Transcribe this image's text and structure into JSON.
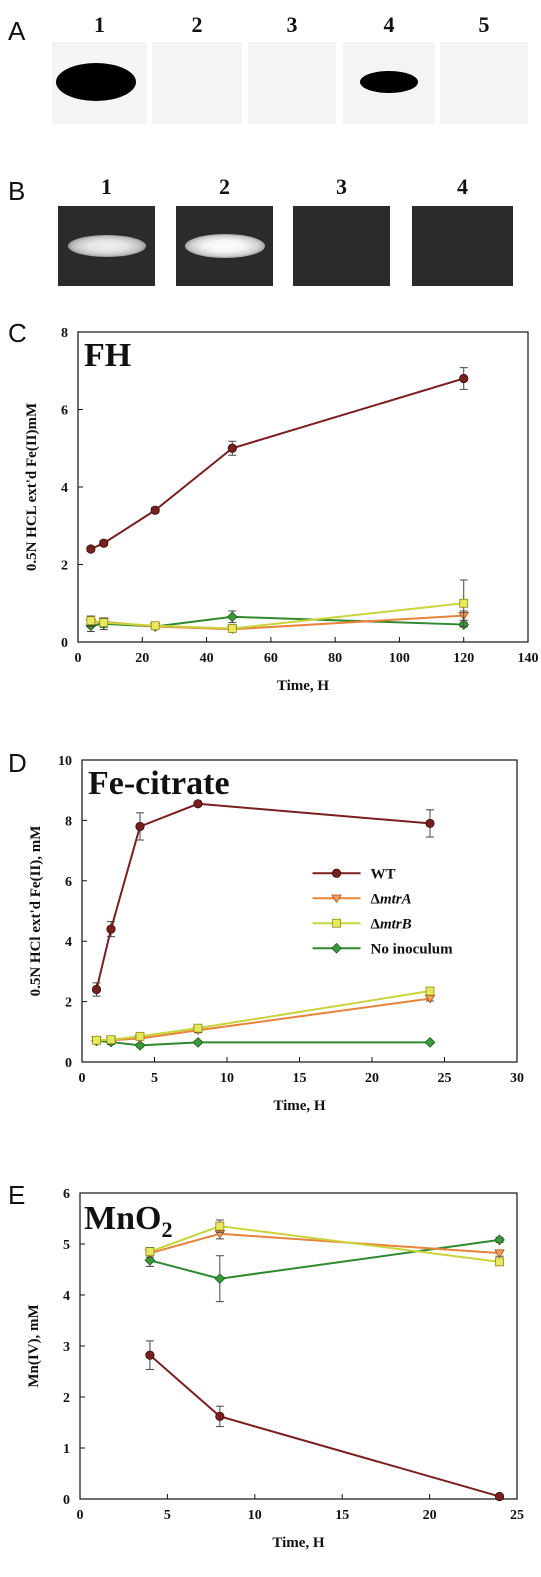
{
  "panels": {
    "a_label": "A",
    "b_label": "B",
    "c_label": "C",
    "d_label": "D",
    "e_label": "E"
  },
  "western_blot": {
    "lanes": [
      "1",
      "2",
      "3",
      "4",
      "5"
    ],
    "band_intensity": [
      1.0,
      0.0,
      0.0,
      0.45,
      0.0
    ]
  },
  "gel": {
    "lanes": [
      "1",
      "2",
      "3",
      "4"
    ],
    "band_intensity": [
      0.8,
      1.0,
      0.0,
      0.0
    ]
  },
  "colors": {
    "WT": "#7a1f1f",
    "mtrA": "#e8833a",
    "mtrB": "#c8d43a",
    "none": "#2f8a2f",
    "markerA": "#f0a060",
    "markerB": "#e8e860",
    "markerNone": "#3a9a3a"
  },
  "chart_data": [
    {
      "type": "line",
      "title": "FH",
      "xlabel": "Time, H",
      "ylabel": "0.5N HCL ext'd Fe(II)mM",
      "xlim": [
        0,
        140
      ],
      "ylim": [
        0,
        8
      ],
      "xticks": [
        "0",
        "20",
        "40",
        "60",
        "80",
        "100",
        "120",
        "140"
      ],
      "yticks": [
        "0",
        "2",
        "4",
        "6",
        "8"
      ],
      "legend": "none",
      "series": [
        {
          "key": "WT",
          "marker": "circle",
          "x": [
            4,
            8,
            24,
            48,
            120
          ],
          "y": [
            2.4,
            2.55,
            3.4,
            5.0,
            6.8
          ],
          "err": [
            0.06,
            0.06,
            0.07,
            0.18,
            0.28
          ]
        },
        {
          "key": "mtrA",
          "marker": "triangle",
          "x": [
            4,
            8,
            24,
            48,
            120
          ],
          "y": [
            0.5,
            0.52,
            0.4,
            0.33,
            0.68
          ],
          "err": [
            0.1,
            0.1,
            0.05,
            0.05,
            0.12
          ]
        },
        {
          "key": "mtrB",
          "marker": "square",
          "x": [
            4,
            8,
            24,
            48,
            120
          ],
          "y": [
            0.55,
            0.5,
            0.42,
            0.35,
            1.0
          ],
          "err": [
            0.12,
            0.12,
            0.05,
            0.05,
            0.6
          ]
        },
        {
          "key": "none",
          "marker": "diamond",
          "x": [
            4,
            8,
            24,
            48,
            120
          ],
          "y": [
            0.42,
            0.47,
            0.4,
            0.65,
            0.45
          ],
          "err": [
            0.15,
            0.15,
            0.06,
            0.15,
            0.06
          ]
        }
      ]
    },
    {
      "type": "line",
      "title": "Fe-citrate",
      "xlabel": "Time, H",
      "ylabel": "0.5N HCl ext'd Fe(II), mM",
      "xlim": [
        0,
        30
      ],
      "ylim": [
        0,
        10
      ],
      "xticks": [
        "0",
        "5",
        "10",
        "15",
        "20",
        "25",
        "30"
      ],
      "yticks": [
        "0",
        "2",
        "4",
        "6",
        "8",
        "10"
      ],
      "legend": "right",
      "legend_entries": [
        {
          "key": "WT",
          "label": "WT",
          "italic": ""
        },
        {
          "key": "mtrA",
          "label": "Δ",
          "italic": "mtrA"
        },
        {
          "key": "mtrB",
          "label": "Δ",
          "italic": "mtrB"
        },
        {
          "key": "none",
          "label": "No inoculum",
          "italic": ""
        }
      ],
      "series": [
        {
          "key": "WT",
          "marker": "circle",
          "x": [
            1,
            2,
            4,
            8,
            24
          ],
          "y": [
            2.4,
            4.4,
            7.8,
            8.55,
            7.9
          ],
          "err": [
            0.22,
            0.25,
            0.45,
            0.05,
            0.45
          ]
        },
        {
          "key": "mtrA",
          "marker": "triangle",
          "x": [
            1,
            2,
            4,
            8,
            24
          ],
          "y": [
            0.72,
            0.72,
            0.78,
            1.05,
            2.1
          ],
          "err": [
            0.05,
            0.05,
            0.05,
            0.08,
            0.08
          ]
        },
        {
          "key": "mtrB",
          "marker": "square",
          "x": [
            1,
            2,
            4,
            8,
            24
          ],
          "y": [
            0.72,
            0.74,
            0.85,
            1.12,
            2.35
          ],
          "err": [
            0.05,
            0.05,
            0.05,
            0.08,
            0.08
          ]
        },
        {
          "key": "none",
          "marker": "diamond",
          "x": [
            1,
            2,
            4,
            8,
            24
          ],
          "y": [
            0.7,
            0.66,
            0.55,
            0.65,
            0.65
          ],
          "err": [
            0.08,
            0.08,
            0.05,
            0.05,
            0.04
          ]
        }
      ]
    },
    {
      "type": "line",
      "title_main": "MnO",
      "title_sub": "2",
      "xlabel": "Time, H",
      "ylabel": "Mn(IV), mM",
      "xlim": [
        0,
        25
      ],
      "ylim": [
        0,
        6
      ],
      "xticks": [
        "0",
        "5",
        "10",
        "15",
        "20",
        "25"
      ],
      "yticks": [
        "0",
        "1",
        "2",
        "3",
        "4",
        "5",
        "6"
      ],
      "legend": "none",
      "series": [
        {
          "key": "WT",
          "marker": "circle",
          "x": [
            4,
            8,
            24
          ],
          "y": [
            2.82,
            1.62,
            0.05
          ],
          "err": [
            0.28,
            0.2,
            0.02
          ]
        },
        {
          "key": "mtrA",
          "marker": "triangle",
          "x": [
            4,
            8,
            24
          ],
          "y": [
            4.82,
            5.2,
            4.82
          ],
          "err": [
            0.08,
            0.1,
            0.06
          ]
        },
        {
          "key": "mtrB",
          "marker": "square",
          "x": [
            4,
            8,
            24
          ],
          "y": [
            4.85,
            5.35,
            4.65
          ],
          "err": [
            0.08,
            0.12,
            0.06
          ]
        },
        {
          "key": "none",
          "marker": "diamond",
          "x": [
            4,
            8,
            24
          ],
          "y": [
            4.68,
            4.32,
            5.08
          ],
          "err": [
            0.12,
            0.45,
            0.05
          ]
        }
      ]
    }
  ]
}
